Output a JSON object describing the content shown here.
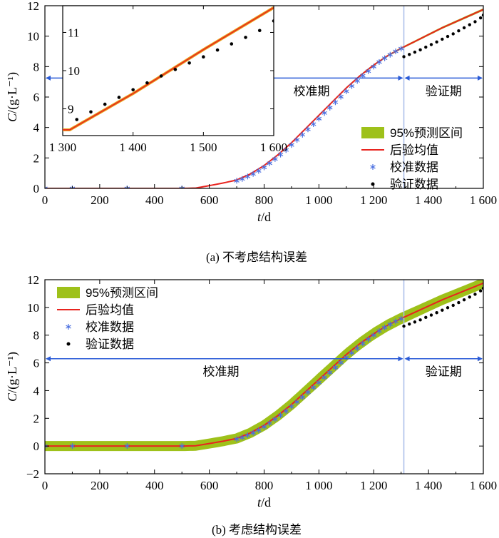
{
  "chart_data": [
    {
      "type": "line",
      "caption": "(a) 不考虑结构误差",
      "xlabel": "t/d",
      "ylabel": "C/(g·L⁻¹)",
      "xlim": [
        0,
        1600
      ],
      "ylim": [
        0,
        12
      ],
      "xticks": [
        0,
        200,
        400,
        600,
        800,
        1000,
        1200,
        1400,
        1600
      ],
      "xtick_labels": [
        "0",
        "200",
        "400",
        "600",
        "800",
        "1 000",
        "1 200",
        "1 400",
        "1 600"
      ],
      "yticks": [
        0,
        2,
        4,
        6,
        8,
        10,
        12
      ],
      "ytick_labels": [
        "0",
        "2",
        "4",
        "6",
        "8",
        "10",
        "12"
      ],
      "split_x": 1310,
      "period_arrow_y": 7.25,
      "period_labels": {
        "calibration": "校准期",
        "validation": "验证期"
      },
      "legend": [
        "95%预测区间",
        "后验均值",
        "校准数据",
        "验证数据"
      ],
      "legend_position": "lower-right",
      "band_halfwidth": [
        0.01,
        0.01,
        0.01,
        0.02,
        0.03,
        0.05,
        0.06,
        0.07,
        0.08
      ],
      "band_x": [
        0,
        300,
        550,
        700,
        800,
        1000,
        1200,
        1400,
        1600
      ],
      "mean": {
        "x": [
          0,
          100,
          200,
          300,
          400,
          500,
          550,
          600,
          650,
          700,
          750,
          800,
          850,
          900,
          950,
          1000,
          1050,
          1100,
          1150,
          1200,
          1250,
          1300,
          1350,
          1400,
          1450,
          1500,
          1550,
          1600
        ],
        "y": [
          0,
          0,
          0,
          0,
          0,
          0,
          0.02,
          0.18,
          0.35,
          0.55,
          0.95,
          1.5,
          2.2,
          3.0,
          3.9,
          4.8,
          5.7,
          6.6,
          7.4,
          8.1,
          8.7,
          9.2,
          9.65,
          10.1,
          10.55,
          10.95,
          11.35,
          11.75
        ]
      },
      "calibration": {
        "x": [
          0,
          100,
          300,
          500,
          700,
          720,
          740,
          760,
          780,
          800,
          820,
          840,
          860,
          880,
          900,
          920,
          940,
          960,
          980,
          1000,
          1020,
          1040,
          1060,
          1080,
          1100,
          1120,
          1140,
          1160,
          1180,
          1200,
          1220,
          1240,
          1260,
          1280,
          1300
        ],
        "y": [
          0,
          0,
          0,
          0,
          0.5,
          0.62,
          0.78,
          0.95,
          1.15,
          1.38,
          1.65,
          1.93,
          2.22,
          2.52,
          2.85,
          3.18,
          3.52,
          3.88,
          4.22,
          4.58,
          4.95,
          5.3,
          5.66,
          6.02,
          6.38,
          6.72,
          7.06,
          7.4,
          7.7,
          8.0,
          8.3,
          8.55,
          8.78,
          9.0,
          9.18
        ]
      },
      "validation": {
        "x": [
          1310,
          1330,
          1350,
          1370,
          1390,
          1410,
          1430,
          1450,
          1470,
          1490,
          1510,
          1530,
          1550,
          1570,
          1590,
          1600
        ],
        "y": [
          8.65,
          8.8,
          8.95,
          9.1,
          9.28,
          9.45,
          9.62,
          9.8,
          9.98,
          10.15,
          10.35,
          10.55,
          10.75,
          10.95,
          11.2,
          11.38
        ]
      },
      "inset": {
        "xlim": [
          1300,
          1600
        ],
        "ylim": [
          8.3,
          11.7
        ],
        "xticks": [
          1300,
          1400,
          1500,
          1600
        ],
        "xtick_labels": [
          "1 300",
          "1 400",
          "1 500",
          "1 600"
        ],
        "yticks": [
          9,
          10,
          11
        ],
        "ytick_labels": [
          "9",
          "10",
          "11"
        ],
        "mean": {
          "x": [
            1310,
            1400,
            1500,
            1600
          ],
          "y": [
            8.45,
            9.4,
            10.55,
            11.65
          ]
        },
        "validation": {
          "x": [
            1320,
            1340,
            1360,
            1380,
            1400,
            1420,
            1440,
            1460,
            1480,
            1500,
            1520,
            1540,
            1560,
            1580,
            1600
          ],
          "y": [
            8.72,
            8.92,
            9.12,
            9.3,
            9.5,
            9.68,
            9.86,
            10.03,
            10.2,
            10.36,
            10.54,
            10.7,
            10.87,
            11.05,
            11.3
          ]
        }
      }
    },
    {
      "type": "line",
      "caption": "(b) 考虑结构误差",
      "xlabel": "t/d",
      "ylabel": "C/(g·L⁻¹)",
      "xlim": [
        0,
        1600
      ],
      "ylim": [
        -2,
        12
      ],
      "xticks": [
        0,
        200,
        400,
        600,
        800,
        1000,
        1200,
        1400,
        1600
      ],
      "xtick_labels": [
        "0",
        "200",
        "400",
        "600",
        "800",
        "1 000",
        "1 200",
        "1 400",
        "1 600"
      ],
      "yticks": [
        -2,
        0,
        2,
        4,
        6,
        8,
        10,
        12
      ],
      "ytick_labels": [
        "−2",
        "0",
        "2",
        "4",
        "6",
        "8",
        "10",
        "12"
      ],
      "split_x": 1310,
      "period_arrow_y": 6.3,
      "period_labels": {
        "calibration": "校准期",
        "validation": "验证期"
      },
      "legend": [
        "95%预测区间",
        "后验均值",
        "校准数据",
        "验证数据"
      ],
      "legend_position": "top-left",
      "band_x": [
        0,
        300,
        550,
        700,
        800,
        1000,
        1200,
        1400,
        1600
      ],
      "band_halfwidth": [
        0.35,
        0.35,
        0.3,
        0.3,
        0.4,
        0.5,
        0.45,
        0.4,
        0.35
      ],
      "mean": {
        "x": [
          0,
          100,
          200,
          300,
          400,
          500,
          550,
          600,
          650,
          700,
          750,
          800,
          850,
          900,
          950,
          1000,
          1050,
          1100,
          1150,
          1200,
          1250,
          1300,
          1350,
          1400,
          1450,
          1500,
          1550,
          1600
        ],
        "y": [
          0,
          0,
          0,
          0,
          0,
          0,
          0.02,
          0.18,
          0.35,
          0.55,
          0.95,
          1.5,
          2.2,
          3.0,
          3.9,
          4.8,
          5.7,
          6.6,
          7.4,
          8.1,
          8.7,
          9.2,
          9.65,
          10.1,
          10.55,
          10.95,
          11.35,
          11.75
        ]
      },
      "calibration": {
        "x": [
          0,
          100,
          300,
          500,
          700,
          720,
          740,
          760,
          780,
          800,
          820,
          840,
          860,
          880,
          900,
          920,
          940,
          960,
          980,
          1000,
          1020,
          1040,
          1060,
          1080,
          1100,
          1120,
          1140,
          1160,
          1180,
          1200,
          1220,
          1240,
          1260,
          1280,
          1300
        ],
        "y": [
          0,
          0,
          0,
          0,
          0.5,
          0.62,
          0.78,
          0.95,
          1.15,
          1.38,
          1.65,
          1.93,
          2.22,
          2.52,
          2.85,
          3.18,
          3.52,
          3.88,
          4.22,
          4.58,
          4.95,
          5.3,
          5.66,
          6.02,
          6.38,
          6.72,
          7.06,
          7.4,
          7.7,
          8.0,
          8.3,
          8.55,
          8.78,
          9.0,
          9.18
        ]
      },
      "validation": {
        "x": [
          1310,
          1330,
          1350,
          1370,
          1390,
          1410,
          1430,
          1450,
          1470,
          1490,
          1510,
          1530,
          1550,
          1570,
          1590,
          1600
        ],
        "y": [
          8.65,
          8.8,
          8.95,
          9.1,
          9.28,
          9.45,
          9.62,
          9.8,
          9.98,
          10.15,
          10.35,
          10.55,
          10.75,
          10.95,
          11.2,
          11.38
        ]
      }
    }
  ],
  "colors": {
    "band": "#9ec11a",
    "mean": "#e8241f",
    "calibration": "#4a6fe0",
    "validation": "#000000",
    "arrow": "#2a5bd7",
    "split": "#a9bde9",
    "axis": "#000000"
  }
}
